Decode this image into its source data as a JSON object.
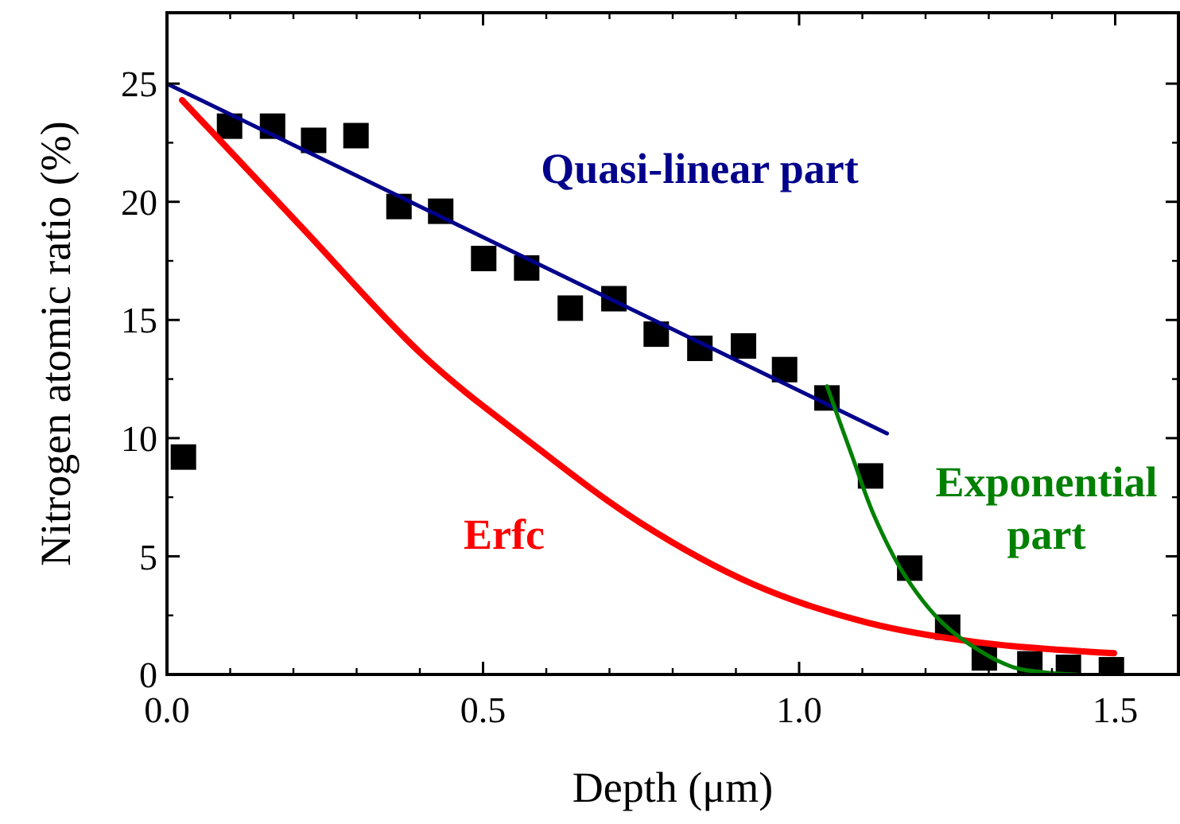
{
  "chart_data": {
    "type": "scatter",
    "xlabel": "Depth (μm)",
    "ylabel": "Nitrogen atomic ratio (%)",
    "xlim": [
      0,
      1.6
    ],
    "ylim": [
      0,
      28
    ],
    "xticks": [
      {
        "value": 0,
        "label": "0.0"
      },
      0.5,
      {
        "value": 1,
        "label": "1.0"
      },
      1.5
    ],
    "yticks": [
      0,
      5,
      10,
      15,
      20,
      25
    ],
    "grid": false,
    "series": [
      {
        "marker": "square",
        "color": "#000000",
        "x": [
          0.026,
          0.099,
          0.167,
          0.232,
          0.299,
          0.367,
          0.433,
          0.501,
          0.569,
          0.638,
          0.707,
          0.774,
          0.843,
          0.912,
          0.977,
          1.044,
          1.113,
          1.175,
          1.235,
          1.293,
          1.365,
          1.426,
          1.494
        ],
        "values": [
          9.2,
          23.2,
          23.2,
          22.6,
          22.8,
          19.8,
          19.6,
          17.6,
          17.2,
          15.5,
          15.9,
          14.4,
          13.8,
          13.9,
          12.9,
          11.7,
          8.4,
          4.5,
          2.0,
          0.7,
          0.45,
          0.3,
          0.2
        ]
      },
      {
        "type": "line",
        "name": "Quasi-linear part",
        "marker": "none",
        "color": "#00008b",
        "x": [
          0,
          1.139
        ],
        "values": [
          25,
          10.2
        ]
      },
      {
        "type": "line",
        "name": "Erfc",
        "marker": "none",
        "color": "#ff0000",
        "x": [
          0.024,
          0.214,
          0.405,
          0.571,
          0.75,
          0.929,
          1.107,
          1.286,
          1.498
        ],
        "values": [
          24.3,
          18.9,
          13.5,
          9.9,
          6.4,
          3.8,
          2.2,
          1.35,
          0.9
        ]
      },
      {
        "type": "line",
        "name": "Exponential part",
        "marker": "none",
        "color": "#008000",
        "x": [
          1.044,
          1.083,
          1.119,
          1.167,
          1.226,
          1.286,
          1.345,
          1.44
        ],
        "values": [
          12.2,
          9.3,
          6.7,
          4.2,
          2.2,
          1.0,
          0.26,
          0
        ]
      }
    ]
  }
}
